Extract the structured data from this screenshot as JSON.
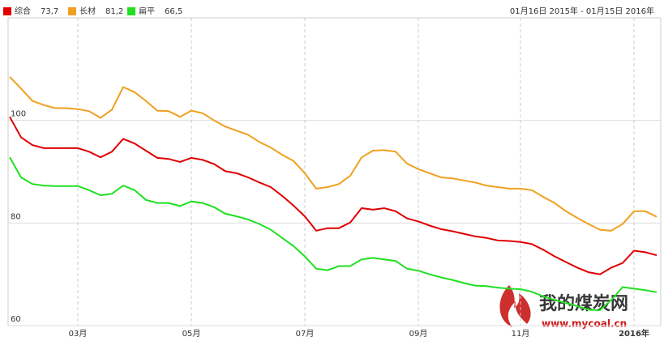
{
  "chart_data": {
    "type": "line",
    "date_range": "01月16日 2015年 - 01月15日 2016年",
    "watermark": {
      "name": "我的煤炭网",
      "url": "www.mycoal.cn"
    },
    "categories": [
      null,
      null,
      null,
      null,
      null,
      null,
      "03月",
      null,
      null,
      null,
      null,
      null,
      null,
      null,
      null,
      null,
      "05月",
      null,
      null,
      null,
      null,
      null,
      null,
      null,
      null,
      null,
      "07月",
      null,
      null,
      null,
      null,
      null,
      null,
      null,
      null,
      null,
      "09月",
      null,
      null,
      null,
      null,
      null,
      null,
      null,
      null,
      "11月",
      null,
      null,
      null,
      null,
      null,
      null,
      null,
      null,
      null,
      "2016年",
      null,
      null
    ],
    "series": [
      {
        "name": "综合",
        "color": "#e00000",
        "legend_value_label": "73,7",
        "values": [
          100.7,
          96.7,
          95.2,
          94.6,
          94.6,
          94.6,
          94.6,
          93.9,
          92.8,
          93.9,
          96.4,
          95.5,
          94.1,
          92.7,
          92.5,
          91.9,
          92.7,
          92.3,
          91.5,
          90.1,
          89.7,
          88.9,
          87.9,
          87.0,
          85.3,
          83.4,
          81.3,
          78.5,
          79.0,
          79.0,
          80.1,
          82.9,
          82.6,
          82.9,
          82.3,
          80.9,
          80.3,
          79.5,
          78.8,
          78.4,
          77.9,
          77.4,
          77.1,
          76.6,
          76.5,
          76.3,
          75.9,
          74.8,
          73.5,
          72.4,
          71.3,
          70.4,
          70.0,
          71.3,
          72.2,
          74.6,
          74.3,
          73.7
        ]
      },
      {
        "name": "长材",
        "color": "#f0a020",
        "legend_value_label": "81,2",
        "values": [
          108.5,
          106.2,
          103.8,
          103.0,
          102.4,
          102.4,
          102.2,
          101.8,
          100.5,
          102.1,
          106.5,
          105.5,
          103.8,
          101.9,
          101.8,
          100.7,
          101.9,
          101.4,
          100.0,
          98.8,
          98.0,
          97.2,
          95.8,
          94.7,
          93.3,
          92.1,
          89.7,
          86.7,
          87.0,
          87.6,
          89.2,
          92.8,
          94.1,
          94.2,
          93.9,
          91.6,
          90.5,
          89.7,
          88.9,
          88.7,
          88.3,
          87.9,
          87.3,
          87.0,
          86.7,
          86.7,
          86.4,
          85.1,
          83.9,
          82.3,
          81.0,
          79.8,
          78.7,
          78.5,
          79.8,
          82.3,
          82.3,
          81.2
        ]
      },
      {
        "name": "扁平",
        "color": "#20e020",
        "legend_value_label": "66,5",
        "values": [
          92.8,
          88.9,
          87.6,
          87.3,
          87.2,
          87.2,
          87.2,
          86.4,
          85.4,
          85.7,
          87.3,
          86.4,
          84.5,
          83.9,
          83.9,
          83.3,
          84.2,
          83.9,
          83.1,
          81.8,
          81.3,
          80.7,
          79.8,
          78.7,
          77.1,
          75.5,
          73.5,
          71.1,
          70.8,
          71.6,
          71.6,
          72.9,
          73.2,
          72.9,
          72.6,
          71.1,
          70.7,
          70.0,
          69.4,
          68.9,
          68.3,
          67.8,
          67.7,
          67.4,
          67.2,
          67.1,
          66.6,
          65.7,
          65.0,
          64.4,
          63.8,
          63.1,
          63.0,
          65.0,
          67.5,
          67.2,
          66.9,
          66.5
        ]
      }
    ],
    "ylim": [
      60,
      120
    ],
    "yticks": [
      60,
      80,
      100
    ],
    "grid": true
  }
}
